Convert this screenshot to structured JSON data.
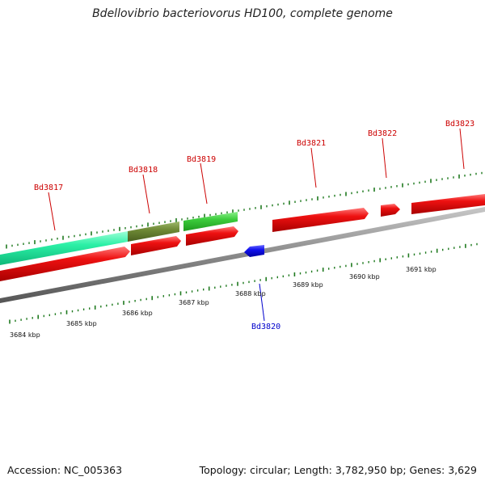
{
  "title": "Bdellovibrio bacteriovorus HD100, complete genome",
  "footer": {
    "accession": "Accession: NC_005363",
    "summary": "Topology: circular; Length: 3,782,950 bp; Genes: 3,629"
  },
  "colors": {
    "forward_gene": "#e00000",
    "reverse_gene": "#0000dd",
    "backbone": "#8a8a8a",
    "tick": "#1f7a1f",
    "label_forward": "#cc0000",
    "label_reverse": "#0000cc"
  },
  "kbp_labels": [
    "3684 kbp",
    "3685 kbp",
    "3686 kbp",
    "3687 kbp",
    "3688 kbp",
    "3689 kbp",
    "3690 kbp",
    "3691 kbp"
  ],
  "genes": [
    {
      "id": "Bd3817",
      "strand": "+"
    },
    {
      "id": "Bd3818",
      "strand": "+"
    },
    {
      "id": "Bd3819",
      "strand": "+"
    },
    {
      "id": "Bd3820",
      "strand": "-"
    },
    {
      "id": "Bd3821",
      "strand": "+"
    },
    {
      "id": "Bd3822",
      "strand": "+"
    },
    {
      "id": "Bd3823",
      "strand": "+"
    }
  ]
}
